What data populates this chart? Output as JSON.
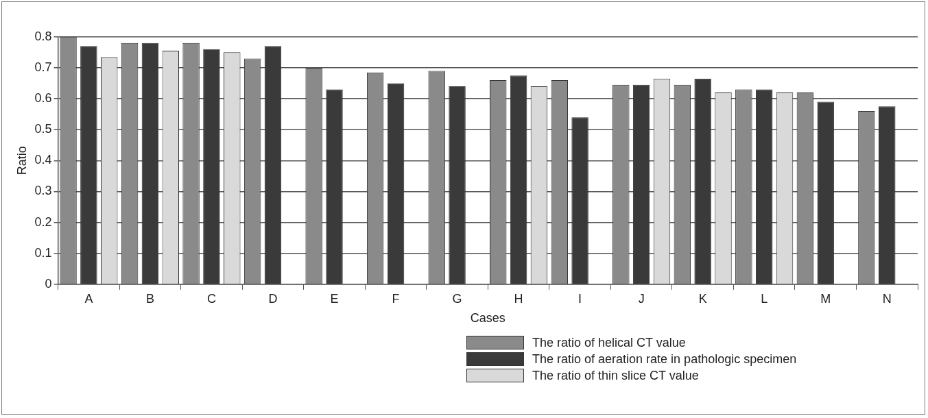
{
  "chart_data": {
    "type": "bar",
    "xlabel": "Cases",
    "ylabel": "Ratio",
    "categories": [
      "A",
      "B",
      "C",
      "D",
      "E",
      "F",
      "G",
      "H",
      "I",
      "J",
      "K",
      "L",
      "M",
      "N"
    ],
    "series": [
      {
        "name": "The ratio of helical CT value",
        "color": "#8a8a8a",
        "values": [
          0.8,
          0.78,
          0.78,
          0.73,
          0.7,
          0.685,
          0.69,
          0.66,
          0.66,
          0.645,
          0.645,
          0.63,
          0.62,
          0.56
        ]
      },
      {
        "name": "The ratio of aeration rate in pathologic specimen",
        "color": "#3a3a3a",
        "values": [
          0.77,
          0.78,
          0.76,
          0.77,
          0.63,
          0.65,
          0.64,
          0.675,
          0.54,
          0.645,
          0.665,
          0.63,
          0.59,
          0.575
        ]
      },
      {
        "name": "The ratio of thin slice CT value",
        "color": "#d9d9d9",
        "values": [
          0.735,
          0.755,
          0.75,
          null,
          null,
          null,
          null,
          0.64,
          null,
          0.665,
          0.62,
          0.62,
          null,
          null
        ]
      }
    ],
    "ylim": [
      0,
      0.8
    ],
    "yticks": [
      0,
      0.1,
      0.2,
      0.3,
      0.4,
      0.5,
      0.6,
      0.7,
      0.8
    ],
    "grid": "y",
    "legend": "bottom right"
  }
}
